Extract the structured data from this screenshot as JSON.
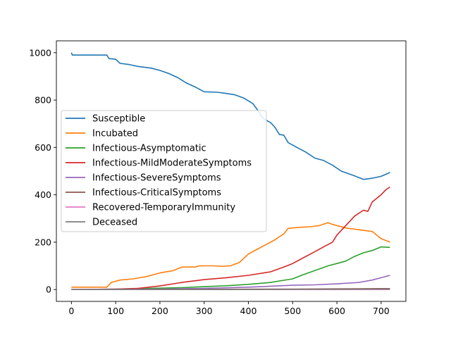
{
  "chart_data": {
    "type": "line",
    "title": "",
    "xlabel": "",
    "ylabel": "",
    "xlim": [
      -34,
      756
    ],
    "ylim": [
      -50,
      1050
    ],
    "xticks": [
      0,
      100,
      200,
      300,
      400,
      500,
      600,
      700
    ],
    "yticks": [
      0,
      200,
      400,
      600,
      800,
      1000
    ],
    "grid": false,
    "legend_position": "center-left",
    "series": [
      {
        "name": "Susceptible",
        "color": "#1f77b4",
        "points": [
          [
            0,
            1000
          ],
          [
            2,
            990
          ],
          [
            80,
            990
          ],
          [
            85,
            975
          ],
          [
            100,
            972
          ],
          [
            110,
            955
          ],
          [
            130,
            950
          ],
          [
            150,
            942
          ],
          [
            180,
            935
          ],
          [
            200,
            925
          ],
          [
            220,
            912
          ],
          [
            240,
            895
          ],
          [
            260,
            872
          ],
          [
            280,
            855
          ],
          [
            300,
            835
          ],
          [
            330,
            833
          ],
          [
            350,
            828
          ],
          [
            370,
            822
          ],
          [
            390,
            808
          ],
          [
            410,
            785
          ],
          [
            420,
            760
          ],
          [
            430,
            730
          ],
          [
            440,
            715
          ],
          [
            450,
            705
          ],
          [
            460,
            685
          ],
          [
            470,
            655
          ],
          [
            480,
            652
          ],
          [
            490,
            620
          ],
          [
            510,
            600
          ],
          [
            530,
            580
          ],
          [
            550,
            555
          ],
          [
            570,
            545
          ],
          [
            590,
            525
          ],
          [
            610,
            500
          ],
          [
            640,
            480
          ],
          [
            660,
            465
          ],
          [
            680,
            470
          ],
          [
            700,
            478
          ],
          [
            715,
            490
          ],
          [
            720,
            495
          ]
        ]
      },
      {
        "name": "Incubated",
        "color": "#ff7f0e",
        "points": [
          [
            0,
            10
          ],
          [
            80,
            10
          ],
          [
            90,
            30
          ],
          [
            110,
            40
          ],
          [
            140,
            45
          ],
          [
            170,
            55
          ],
          [
            200,
            70
          ],
          [
            230,
            80
          ],
          [
            250,
            95
          ],
          [
            280,
            95
          ],
          [
            290,
            100
          ],
          [
            320,
            100
          ],
          [
            340,
            98
          ],
          [
            360,
            100
          ],
          [
            380,
            115
          ],
          [
            400,
            150
          ],
          [
            420,
            170
          ],
          [
            440,
            190
          ],
          [
            460,
            210
          ],
          [
            480,
            235
          ],
          [
            490,
            258
          ],
          [
            500,
            260
          ],
          [
            520,
            263
          ],
          [
            540,
            265
          ],
          [
            560,
            270
          ],
          [
            580,
            282
          ],
          [
            590,
            275
          ],
          [
            600,
            270
          ],
          [
            620,
            260
          ],
          [
            640,
            255
          ],
          [
            660,
            250
          ],
          [
            680,
            245
          ],
          [
            700,
            215
          ],
          [
            720,
            200
          ]
        ]
      },
      {
        "name": "Infectious-Asymptomatic",
        "color": "#2ca02c",
        "points": [
          [
            0,
            0
          ],
          [
            100,
            2
          ],
          [
            150,
            4
          ],
          [
            200,
            6
          ],
          [
            250,
            8
          ],
          [
            300,
            12
          ],
          [
            350,
            16
          ],
          [
            400,
            22
          ],
          [
            450,
            30
          ],
          [
            500,
            45
          ],
          [
            520,
            60
          ],
          [
            550,
            80
          ],
          [
            580,
            100
          ],
          [
            600,
            110
          ],
          [
            620,
            120
          ],
          [
            640,
            140
          ],
          [
            660,
            155
          ],
          [
            680,
            165
          ],
          [
            700,
            180
          ],
          [
            720,
            178
          ]
        ]
      },
      {
        "name": "Infectious-MildModerateSymptoms",
        "color": "#d62728",
        "points": [
          [
            0,
            0
          ],
          [
            100,
            2
          ],
          [
            150,
            5
          ],
          [
            200,
            15
          ],
          [
            250,
            30
          ],
          [
            300,
            42
          ],
          [
            350,
            50
          ],
          [
            400,
            60
          ],
          [
            450,
            75
          ],
          [
            480,
            95
          ],
          [
            500,
            110
          ],
          [
            520,
            130
          ],
          [
            550,
            160
          ],
          [
            570,
            180
          ],
          [
            590,
            200
          ],
          [
            600,
            230
          ],
          [
            620,
            270
          ],
          [
            640,
            310
          ],
          [
            660,
            335
          ],
          [
            670,
            330
          ],
          [
            680,
            370
          ],
          [
            700,
            400
          ],
          [
            710,
            420
          ],
          [
            720,
            433
          ]
        ]
      },
      {
        "name": "Infectious-SevereSymptoms",
        "color": "#9467bd",
        "points": [
          [
            0,
            0
          ],
          [
            200,
            2
          ],
          [
            300,
            5
          ],
          [
            400,
            10
          ],
          [
            500,
            18
          ],
          [
            550,
            20
          ],
          [
            600,
            24
          ],
          [
            650,
            30
          ],
          [
            680,
            40
          ],
          [
            700,
            50
          ],
          [
            720,
            60
          ]
        ]
      },
      {
        "name": "Infectious-CriticalSymptoms",
        "color": "#8c564b",
        "points": [
          [
            0,
            0
          ],
          [
            300,
            1
          ],
          [
            500,
            2
          ],
          [
            600,
            3
          ],
          [
            700,
            4
          ],
          [
            720,
            4
          ]
        ]
      },
      {
        "name": "Recovered-TemporaryImmunity",
        "color": "#e377c2",
        "points": [
          [
            0,
            0
          ],
          [
            720,
            0
          ]
        ]
      },
      {
        "name": "Deceased",
        "color": "#7f7f7f",
        "points": [
          [
            0,
            0
          ],
          [
            400,
            0
          ],
          [
            600,
            1
          ],
          [
            720,
            2
          ]
        ]
      }
    ]
  }
}
